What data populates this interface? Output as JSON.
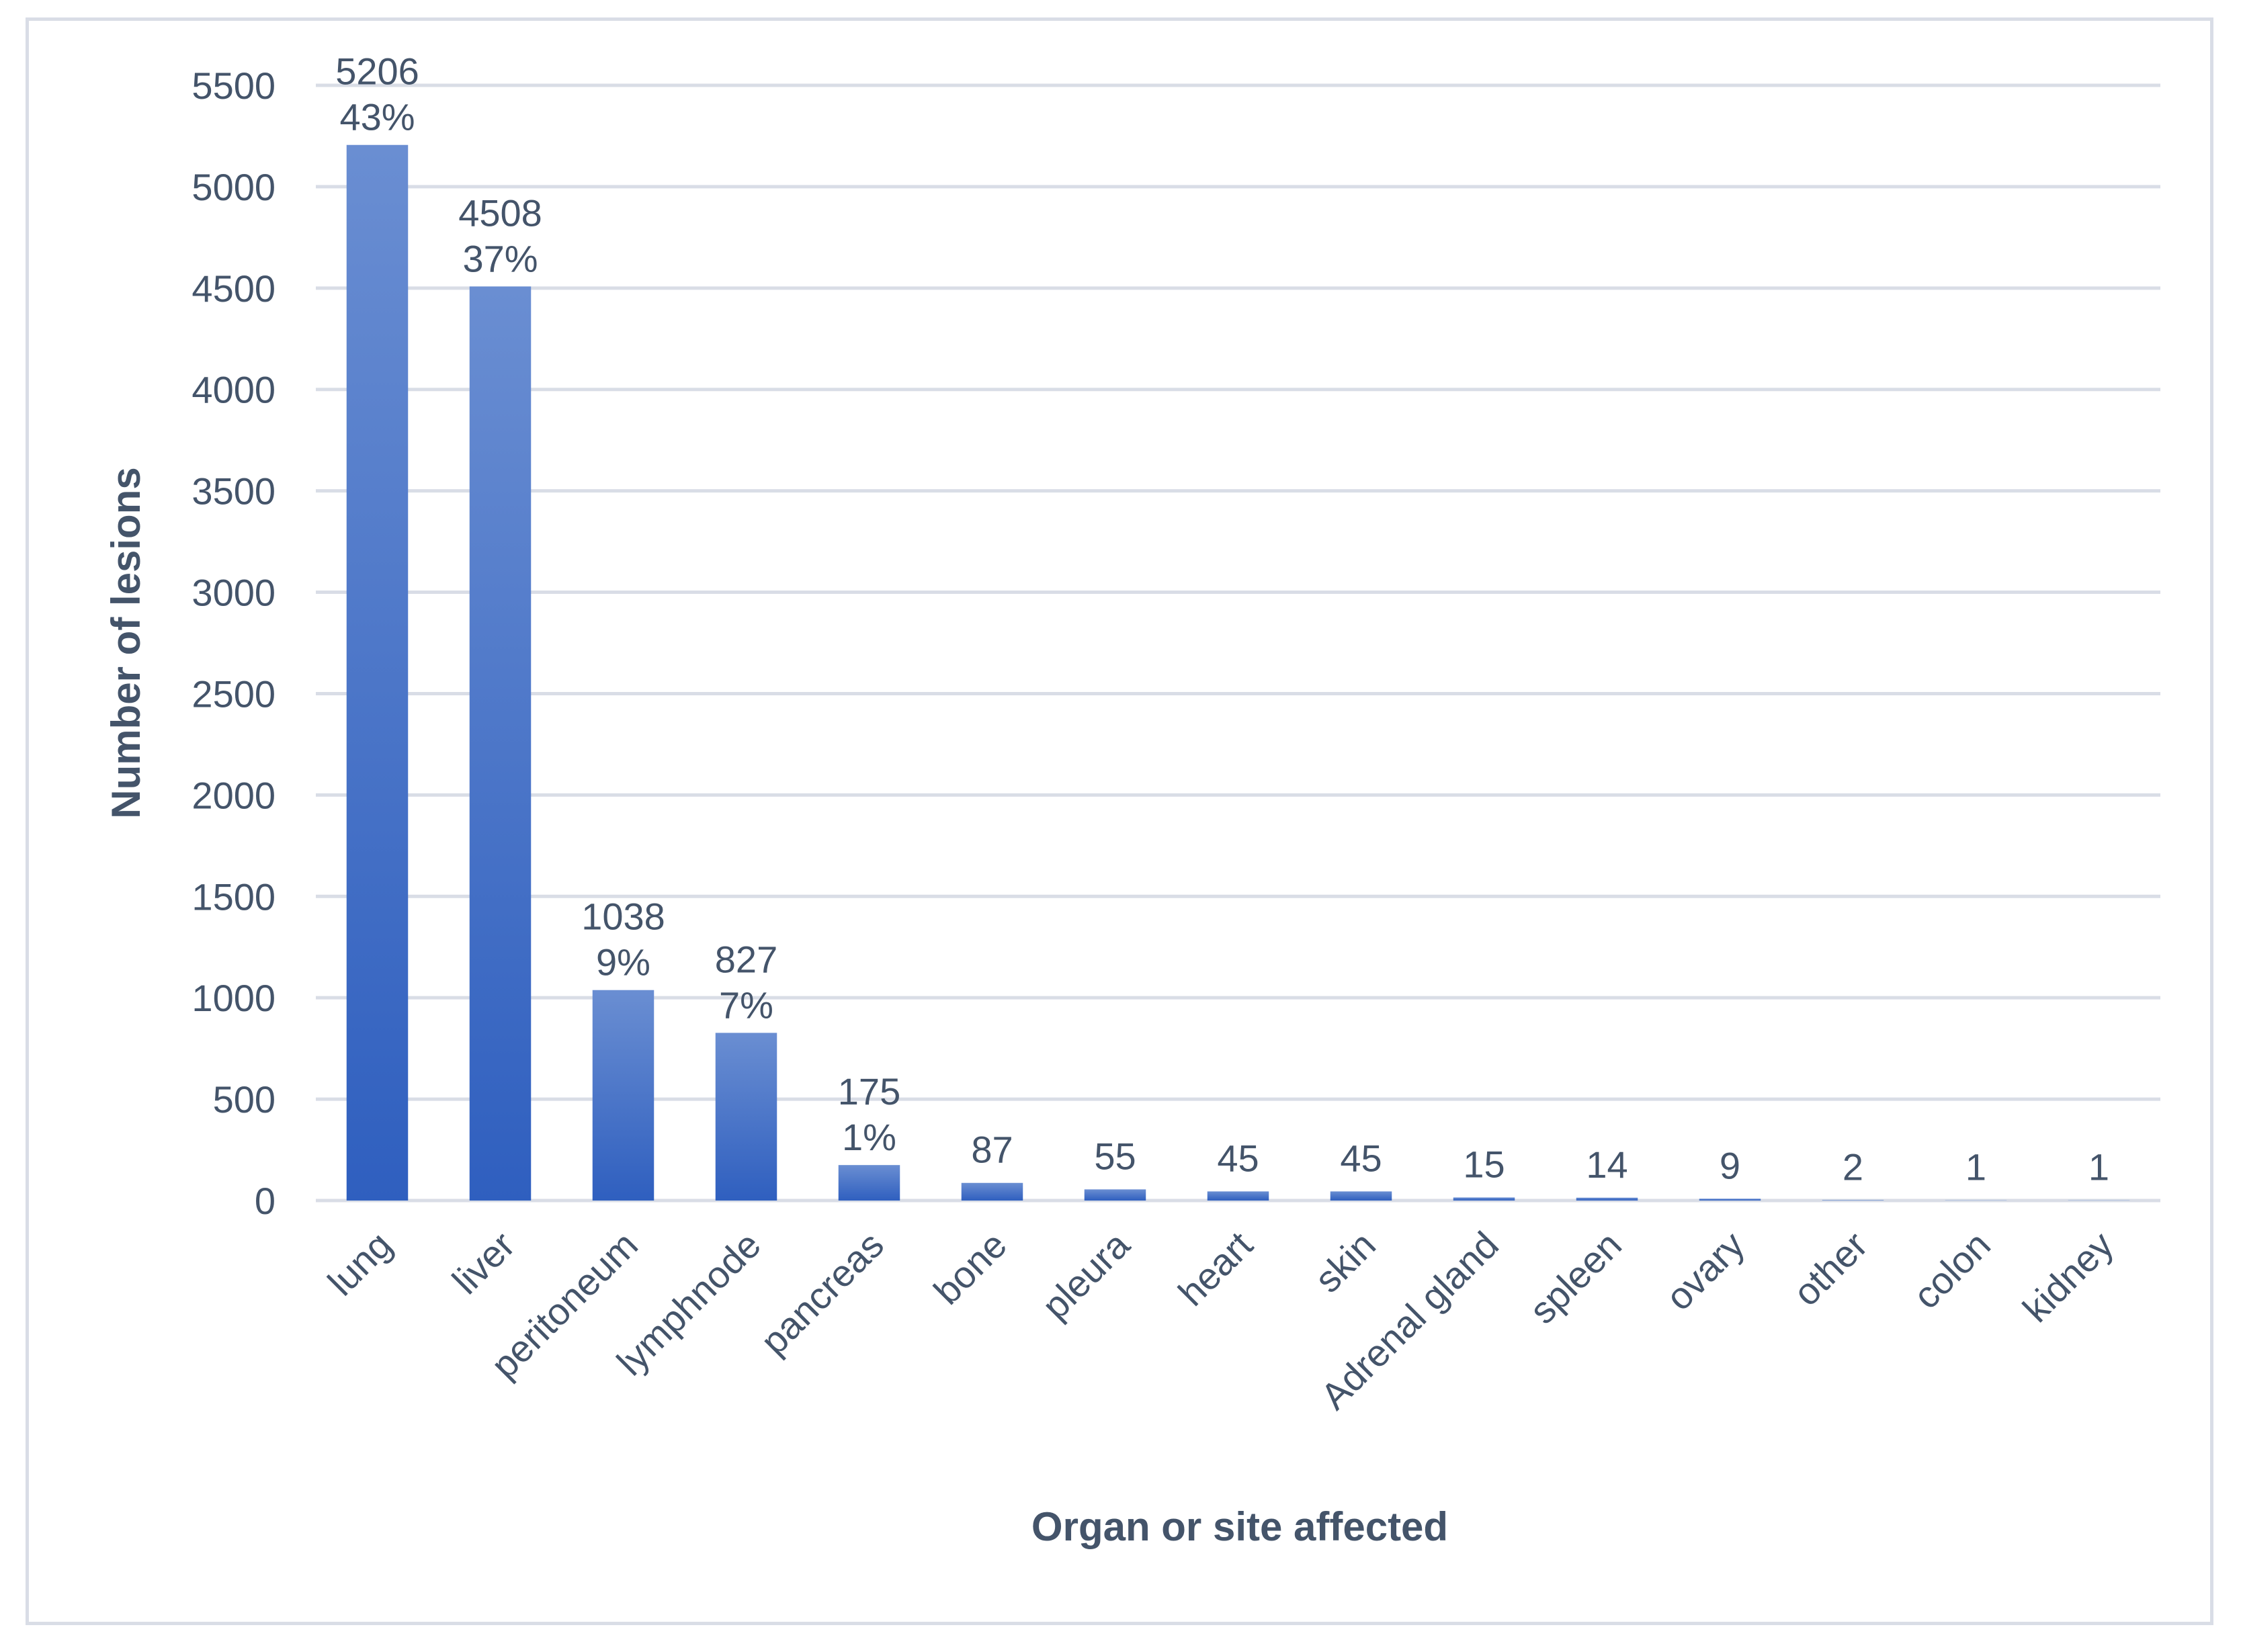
{
  "chart_data": {
    "type": "bar",
    "title": "",
    "xlabel": "Organ or site affected",
    "ylabel": "Number of lesions",
    "ylim": [
      0,
      5500
    ],
    "yticks": [
      0,
      500,
      1000,
      1500,
      2000,
      2500,
      3000,
      3500,
      4000,
      4500,
      5000,
      5500
    ],
    "grid": true,
    "legend": "none",
    "bar_color": "#3a68c4",
    "categories": [
      "lung",
      "liver",
      "peritoneum",
      "lymphnode",
      "pancreas",
      "bone",
      "pleura",
      "heart",
      "skin",
      "Adrenal gland",
      "spleen",
      "ovary",
      "other",
      "colon",
      "kidney"
    ],
    "values": [
      5206,
      4508,
      1038,
      827,
      175,
      87,
      55,
      45,
      45,
      15,
      14,
      9,
      2,
      1,
      1
    ],
    "percent_labels": [
      "43%",
      "37%",
      "9%",
      "7%",
      "1%",
      "",
      "",
      "",
      "",
      "",
      "",
      "",
      "",
      "",
      ""
    ]
  }
}
